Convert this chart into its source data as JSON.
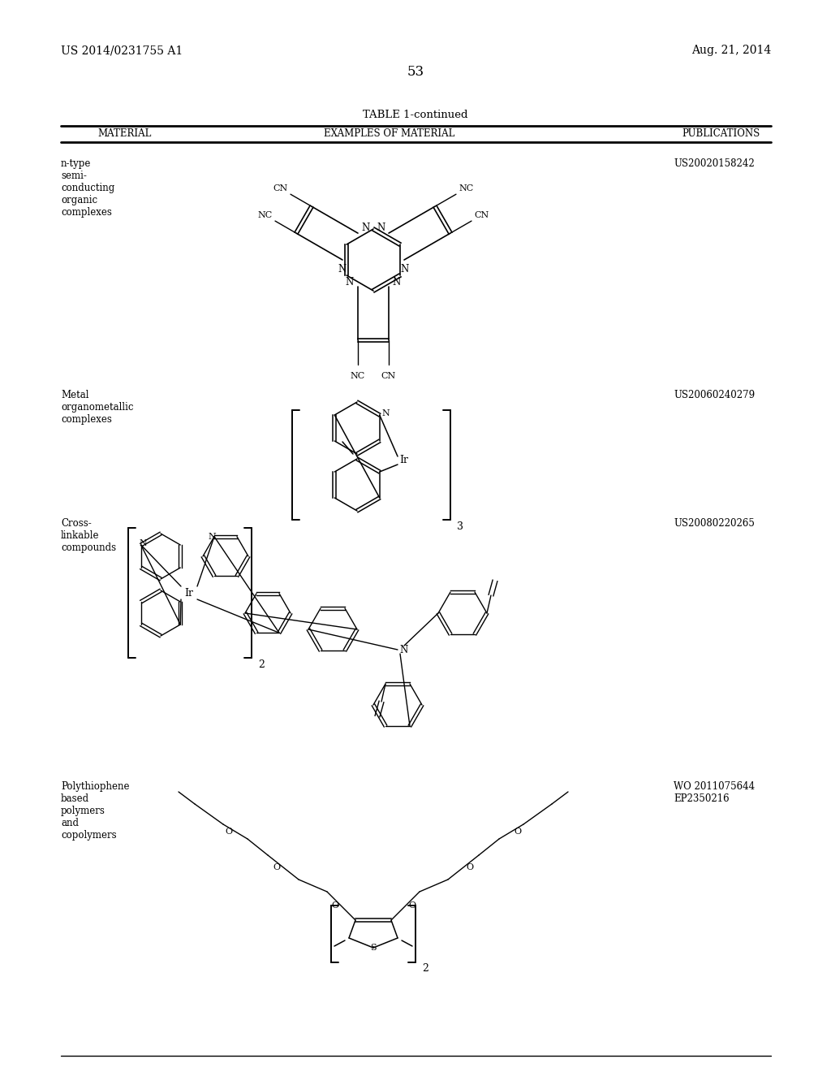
{
  "background_color": "#ffffff",
  "header_left": "US 2014/0231755 A1",
  "header_right": "Aug. 21, 2014",
  "page_number": "53",
  "table_title": "TABLE 1-continued",
  "col1_header": "MATERIAL",
  "col2_header": "EXAMPLES OF MATERIAL",
  "col3_header": "PUBLICATIONS",
  "rows": [
    {
      "material": "n-type\nsemi-\nconducting\norganic\ncomplexes",
      "publication": "US20020158242"
    },
    {
      "material": "Metal\norganometallic\ncomplexes",
      "publication": "US20060240279"
    },
    {
      "material": "Cross-\nlinkable\ncompounds",
      "publication": "US20080220265"
    },
    {
      "material": "Polythiophene\nbased\npolymers\nand\ncopolymers",
      "publication": "WO 2011075644\nEP2350216"
    }
  ]
}
